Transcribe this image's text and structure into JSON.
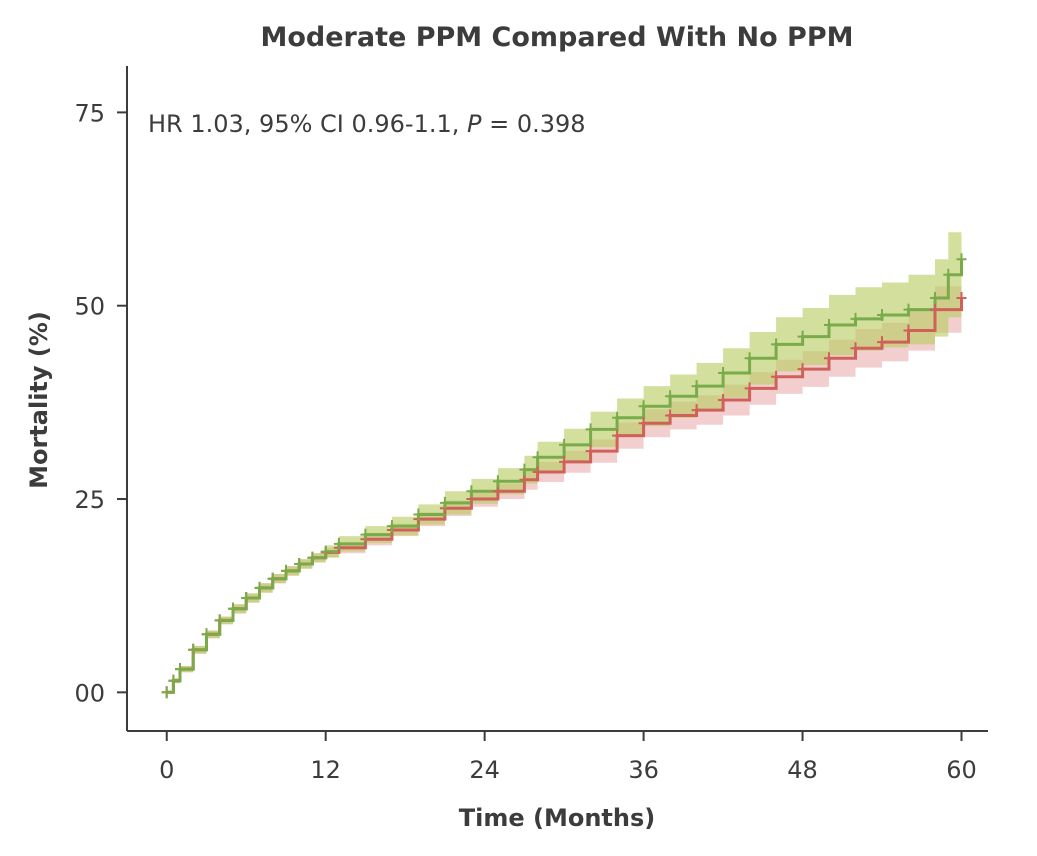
{
  "chart_data": {
    "type": "line",
    "title": "Moderate PPM Compared With No PPM",
    "xlabel": "Time (Months)",
    "ylabel": "Mortality (%)",
    "xlim": [
      -3,
      62
    ],
    "ylim": [
      -5,
      81
    ],
    "x_ticks": [
      0,
      12,
      24,
      36,
      48,
      60
    ],
    "x_tick_labels": [
      "0",
      "12",
      "24",
      "36",
      "48",
      "60"
    ],
    "y_ticks": [
      0,
      25,
      50,
      75
    ],
    "y_tick_labels": [
      "00",
      "25",
      "50",
      "75"
    ],
    "annotation": {
      "prefix": "HR 1.03, 95% CI 0.96-1.1, ",
      "p_symbol": "P",
      "suffix": " = 0.398"
    },
    "grid": false,
    "legend": "none",
    "series": [
      {
        "color": "#d0605a",
        "band_color": "#e8a8a5",
        "x": [
          0,
          0.5,
          1,
          2,
          3,
          4,
          5,
          6,
          7,
          8,
          9,
          10,
          11,
          12,
          13,
          15,
          17,
          19,
          21,
          23,
          25,
          27,
          28,
          30,
          32,
          34,
          36,
          38,
          40,
          42,
          44,
          46,
          48,
          50,
          52,
          54,
          56,
          58,
          60
        ],
        "y": [
          0,
          1.5,
          3,
          5.5,
          7.5,
          9.3,
          10.8,
          12.2,
          13.5,
          14.7,
          15.7,
          16.6,
          17.4,
          18.1,
          18.7,
          19.8,
          21,
          22.4,
          23.8,
          25,
          26,
          27.5,
          28.5,
          29.8,
          31.2,
          33.2,
          34.8,
          35.8,
          36.5,
          37.8,
          39.3,
          40.8,
          41.8,
          43.2,
          44.5,
          45.3,
          46.8,
          49.5,
          51
        ],
        "lower": [
          0,
          1.2,
          2.6,
          5,
          7,
          8.8,
          10.2,
          11.6,
          12.9,
          14.1,
          15.1,
          16,
          16.8,
          17.5,
          18,
          19,
          20.2,
          21.5,
          22.8,
          24,
          25,
          26.2,
          27.2,
          28.4,
          29.7,
          31.5,
          33,
          34,
          34.6,
          35.8,
          37.2,
          38.6,
          39.5,
          40.8,
          42,
          42.8,
          44.2,
          46.5,
          48
        ],
        "upper": [
          0,
          1.8,
          3.4,
          6,
          8,
          9.8,
          11.4,
          12.8,
          14.1,
          15.3,
          16.3,
          17.2,
          18,
          18.7,
          19.4,
          20.6,
          21.8,
          23.3,
          24.8,
          26,
          27,
          28.8,
          29.8,
          31.2,
          32.7,
          34.9,
          36.6,
          37.6,
          38.4,
          39.8,
          41.4,
          43,
          44.1,
          45.6,
          47,
          47.8,
          49.4,
          52.5,
          54
        ]
      },
      {
        "color": "#7aab4a",
        "band_color": "#b5cc5c",
        "x": [
          0,
          0.5,
          1,
          2,
          3,
          4,
          5,
          6,
          7,
          8,
          9,
          10,
          11,
          12,
          13,
          15,
          17,
          19,
          21,
          23,
          25,
          27,
          28,
          30,
          32,
          34,
          36,
          38,
          40,
          42,
          44,
          46,
          48,
          50,
          52,
          54,
          56,
          58,
          59,
          60
        ],
        "y": [
          0,
          1.5,
          3,
          5.5,
          7.5,
          9.3,
          10.8,
          12.2,
          13.5,
          14.7,
          15.7,
          16.6,
          17.4,
          18.2,
          19.2,
          20.4,
          21.5,
          23,
          24.5,
          26,
          27.3,
          28.8,
          30.4,
          32,
          34,
          35.5,
          37,
          38.3,
          39.6,
          41.3,
          43.2,
          45,
          46,
          47.5,
          48.3,
          48.8,
          49.5,
          51,
          54,
          56
        ],
        "lower": [
          0,
          1.2,
          2.6,
          5,
          7,
          8.8,
          10.2,
          11.6,
          12.9,
          14.1,
          15.1,
          16,
          16.8,
          17.4,
          18.2,
          19.3,
          20.3,
          21.7,
          23,
          24.4,
          25.6,
          27,
          28.4,
          29.9,
          31.7,
          33,
          34.4,
          35.5,
          36.6,
          38.1,
          39.8,
          41.5,
          42.3,
          43.6,
          44.2,
          44.6,
          45,
          46,
          48.5,
          50.5
        ],
        "upper": [
          0,
          1.8,
          3.4,
          6,
          8,
          9.8,
          11.4,
          12.8,
          14.1,
          15.3,
          16.3,
          17.2,
          18,
          19,
          20.2,
          21.5,
          22.7,
          24.3,
          26,
          27.6,
          29,
          30.6,
          32.4,
          34.1,
          36.3,
          38,
          39.6,
          41.1,
          42.6,
          44.5,
          46.6,
          48.5,
          49.7,
          51.4,
          52.4,
          53,
          54,
          56,
          59.5,
          61
        ]
      }
    ]
  }
}
